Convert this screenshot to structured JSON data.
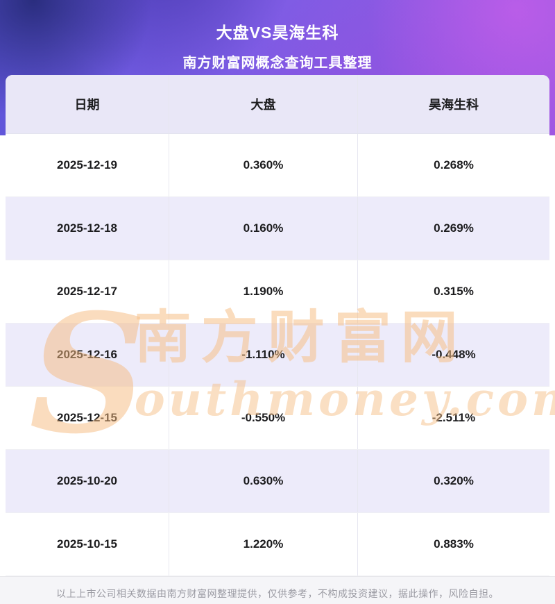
{
  "header": {
    "title_line1": "大盘VS昊海生科",
    "title_line2": "南方财富网概念查询工具整理"
  },
  "table": {
    "columns": [
      "日期",
      "大盘",
      "昊海生科"
    ],
    "rows": [
      {
        "date": "2025-12-19",
        "market": "0.360%",
        "stock": "0.268%"
      },
      {
        "date": "2025-12-18",
        "market": "0.160%",
        "stock": "0.269%"
      },
      {
        "date": "2025-12-17",
        "market": "1.190%",
        "stock": "0.315%"
      },
      {
        "date": "2025-12-16",
        "market": "-1.110%",
        "stock": "-0.448%"
      },
      {
        "date": "2025-12-15",
        "market": "-0.550%",
        "stock": "-2.511%"
      },
      {
        "date": "2025-10-20",
        "market": "0.630%",
        "stock": "0.320%"
      },
      {
        "date": "2025-10-15",
        "market": "1.220%",
        "stock": "0.883%"
      }
    ]
  },
  "chart_data": {
    "type": "table",
    "title": "大盘VS昊海生科",
    "categories": [
      "2025-12-19",
      "2025-12-18",
      "2025-12-17",
      "2025-12-16",
      "2025-12-15",
      "2025-10-20",
      "2025-10-15"
    ],
    "series": [
      {
        "name": "大盘",
        "values": [
          0.36,
          0.16,
          1.19,
          -1.11,
          -0.55,
          0.63,
          1.22
        ]
      },
      {
        "name": "昊海生科",
        "values": [
          0.268,
          0.269,
          0.315,
          -0.448,
          -2.511,
          0.32,
          0.883
        ]
      }
    ],
    "unit": "%"
  },
  "watermark": {
    "initial": "S",
    "cn": "南方财富网",
    "en": "outhmoney.com"
  },
  "footer": {
    "disclaimer": "以上上市公司相关数据由南方财富网整理提供，仅供参考，不构成投资建议，据此操作，风险自担。"
  },
  "colors": {
    "hero_purple": "#7d5ce4",
    "row_alt": "#edebfa",
    "header_row": "#e9e7f7",
    "watermark_orange": "#f5b97d"
  }
}
